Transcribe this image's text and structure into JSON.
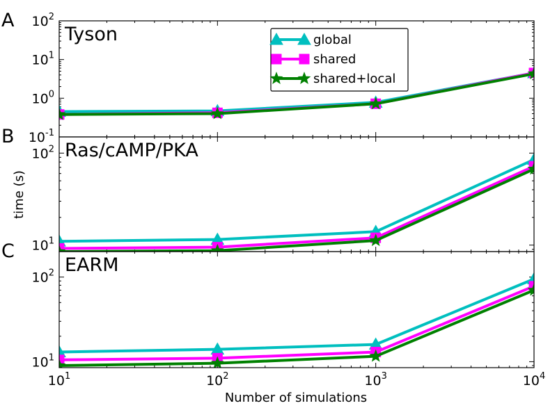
{
  "chart_data": {
    "type": "line",
    "xlabel": "Number of simulations",
    "ylabel": "time (s)",
    "x": [
      10,
      100,
      1000,
      10000
    ],
    "x_scale": "log",
    "xlim": [
      10,
      10000
    ],
    "x_ticks": [
      {
        "base": "10",
        "exp": "1"
      },
      {
        "base": "10",
        "exp": "2"
      },
      {
        "base": "10",
        "exp": "3"
      },
      {
        "base": "10",
        "exp": "4"
      }
    ],
    "legend": {
      "placement": "top-center",
      "entries": [
        {
          "name": "global",
          "color": "#00BFBF",
          "marker": "triangle"
        },
        {
          "name": "shared",
          "color": "#FF00FF",
          "marker": "square"
        },
        {
          "name": "shared+local",
          "color": "#008000",
          "marker": "star"
        }
      ]
    },
    "panels": [
      {
        "letter": "A",
        "title": "Tyson",
        "y_scale": "log",
        "ylim": [
          0.1,
          100
        ],
        "y_ticks": [
          {
            "value": 0.1,
            "base": "10",
            "exp": "-1"
          },
          {
            "value": 1,
            "base": "10",
            "exp": "0"
          },
          {
            "value": 10,
            "base": "10",
            "exp": "1"
          },
          {
            "value": 100,
            "base": "10",
            "exp": "2"
          }
        ],
        "series": [
          {
            "name": "global",
            "values": [
              0.45,
              0.47,
              0.78,
              4.5
            ]
          },
          {
            "name": "shared",
            "values": [
              0.38,
              0.42,
              0.72,
              4.5
            ]
          },
          {
            "name": "shared+local",
            "values": [
              0.38,
              0.4,
              0.72,
              4.3
            ]
          }
        ]
      },
      {
        "letter": "B",
        "title": "Ras/cAMP/PKA",
        "y_scale": "log",
        "ylim": [
          8.5,
          150
        ],
        "y_ticks": [
          {
            "value": 10,
            "base": "10",
            "exp": "1"
          },
          {
            "value": 100,
            "base": "10",
            "exp": "2"
          }
        ],
        "series": [
          {
            "name": "global",
            "values": [
              11.0,
              11.5,
              14.0,
              85
            ]
          },
          {
            "name": "shared",
            "values": [
              9.2,
              9.5,
              12.0,
              72
            ]
          },
          {
            "name": "shared+local",
            "values": [
              8.5,
              8.7,
              11.2,
              67
            ]
          }
        ]
      },
      {
        "letter": "C",
        "title": "EARM",
        "y_scale": "log",
        "ylim": [
          8.5,
          200
        ],
        "y_ticks": [
          {
            "value": 10,
            "base": "10",
            "exp": "1"
          },
          {
            "value": 100,
            "base": "10",
            "exp": "2"
          }
        ],
        "series": [
          {
            "name": "global",
            "values": [
              13.0,
              14.0,
              16.0,
              95
            ]
          },
          {
            "name": "shared",
            "values": [
              10.5,
              11.0,
              13.0,
              78
            ]
          },
          {
            "name": "shared+local",
            "values": [
              9.0,
              9.6,
              11.6,
              70
            ]
          }
        ]
      }
    ]
  }
}
